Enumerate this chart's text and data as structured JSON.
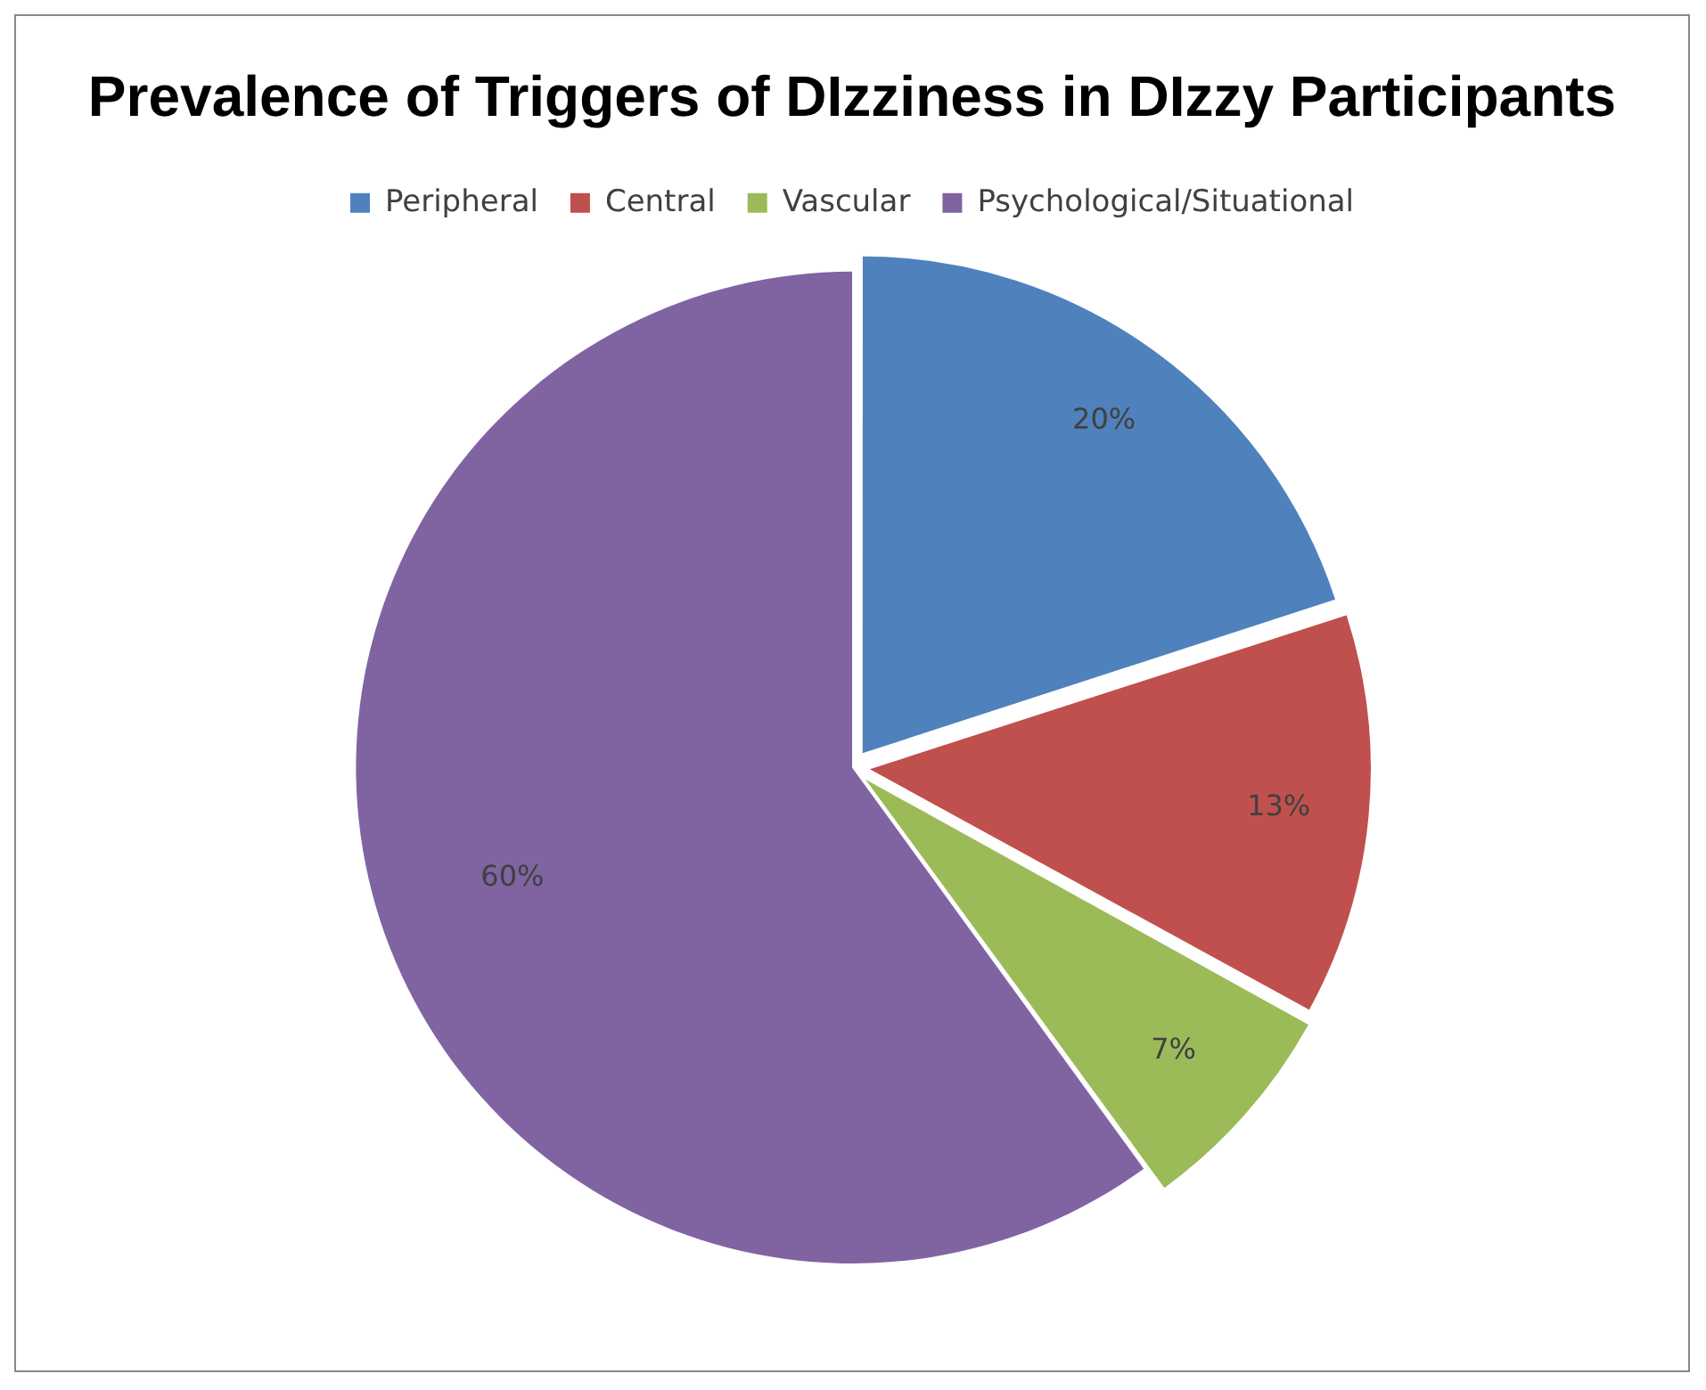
{
  "chart_data": {
    "type": "pie",
    "title": "Prevalence of Triggers of DIzziness in DIzzy Participants",
    "categories": [
      "Peripheral",
      "Central",
      "Vascular",
      "Psychological/Situational"
    ],
    "values": [
      20,
      13,
      7,
      60
    ],
    "colors": [
      "#4f81bd",
      "#c0504d",
      "#9bbb59",
      "#8064a2"
    ],
    "value_labels": [
      "20%",
      "13%",
      "7%",
      "60%"
    ],
    "legend": "top"
  }
}
